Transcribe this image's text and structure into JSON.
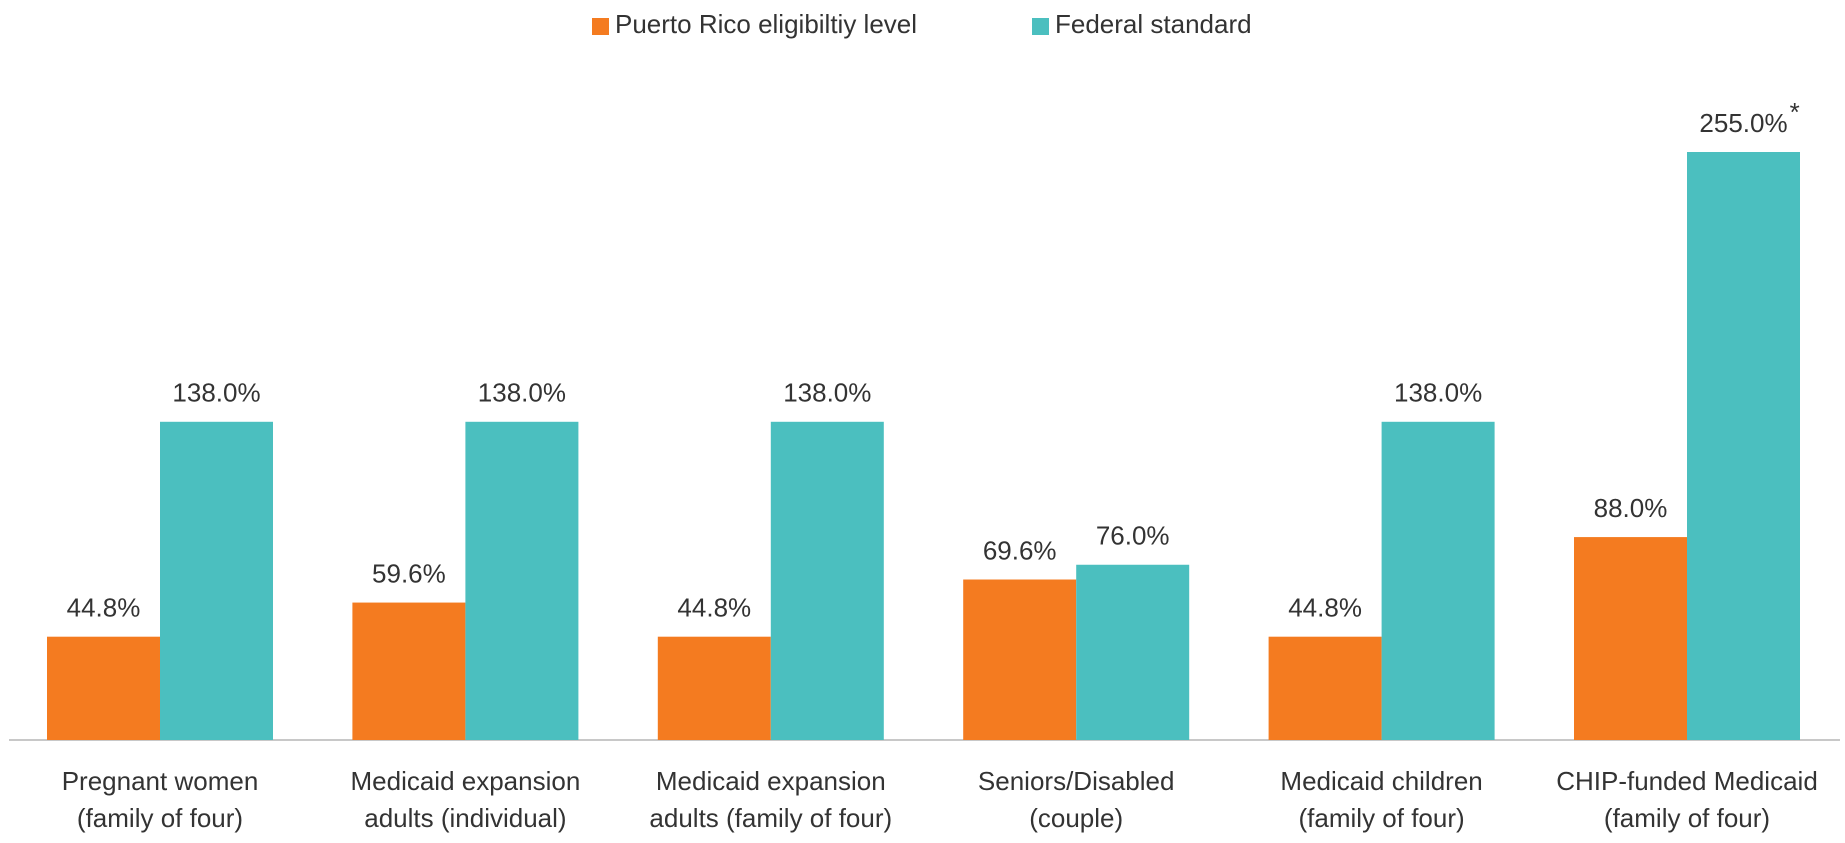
{
  "chart_data": {
    "type": "bar",
    "categories": [
      [
        "Pregnant women",
        "(family of four)"
      ],
      [
        "Medicaid expansion",
        "adults (individual)"
      ],
      [
        "Medicaid expansion",
        "adults (family of four)"
      ],
      [
        "Seniors/Disabled",
        "(couple)"
      ],
      [
        "Medicaid children",
        "(family of four)"
      ],
      [
        "CHIP-funded Medicaid",
        "(family of four)"
      ]
    ],
    "series": [
      {
        "name": "Puerto Rico eligibiltiy level",
        "color": "#f47b20",
        "values": [
          44.8,
          59.6,
          44.8,
          69.6,
          44.8,
          88.0
        ],
        "value_labels": [
          "44.8%",
          "59.6%",
          "44.8%",
          "69.6%",
          "44.8%",
          "88.0%"
        ]
      },
      {
        "name": "Federal standard",
        "color": "#4bbfbf",
        "values": [
          138.0,
          138.0,
          138.0,
          76.0,
          138.0,
          255.0
        ],
        "value_labels": [
          "138.0%",
          "138.0%",
          "138.0%",
          "76.0%",
          "138.0%",
          "255.0%"
        ]
      }
    ],
    "annotations": [
      {
        "text": "*",
        "series": 1,
        "index": 5
      }
    ]
  }
}
